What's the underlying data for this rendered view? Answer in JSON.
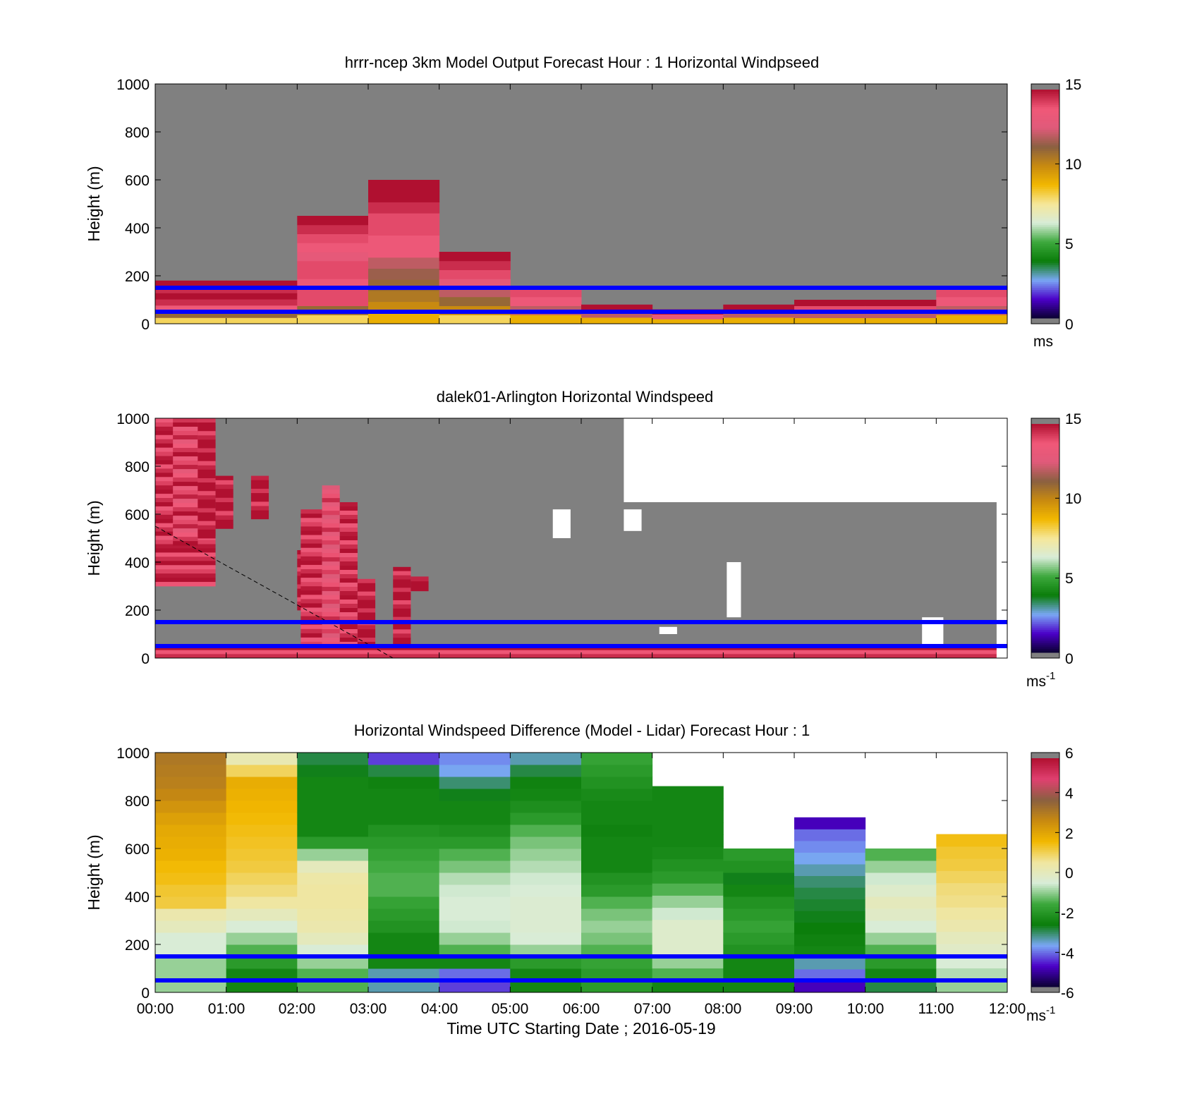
{
  "colors": {
    "missing": "#808080",
    "no_data": "#ffffff",
    "reference_line": "#0000ff",
    "speed_scale": [
      "#0a0030",
      "#4b00c8",
      "#7aa7f5",
      "#0a7d0a",
      "#3ca83c",
      "#d8ecd8",
      "#f5e79a",
      "#f2b800",
      "#c88a10",
      "#8a6040",
      "#e05a7a",
      "#f05878",
      "#b01030"
    ],
    "diff_scale": [
      "#0a0030",
      "#4b00c8",
      "#7aa7f5",
      "#0a7d0a",
      "#3ca83c",
      "#d8ecd8",
      "#f0e6a0",
      "#f2b800",
      "#c88a10",
      "#8a6040",
      "#e04070",
      "#b01030"
    ]
  },
  "xaxis": {
    "ticks": [
      "00:00",
      "01:00",
      "02:00",
      "03:00",
      "04:00",
      "05:00",
      "06:00",
      "07:00",
      "08:00",
      "09:00",
      "10:00",
      "11:00",
      "12:00"
    ],
    "label": "Time UTC  Starting Date ; 2016-05-19"
  },
  "chart_data": [
    {
      "type": "heatmap",
      "title": "hrrr-ncep 3km Model Output   Forecast Hour : 1 Horizontal Windpseed",
      "ylabel": "Height (m)",
      "ylim": [
        0,
        1000
      ],
      "yticks": [
        "0",
        "200",
        "400",
        "600",
        "800",
        "1000"
      ],
      "xlim_hours": [
        0,
        12
      ],
      "colorbar": {
        "ticks": [
          "0",
          "5",
          "10",
          "15"
        ],
        "range": [
          0,
          15
        ],
        "unit": "ms"
      },
      "reference_lines_m": [
        50,
        150
      ],
      "columns": [
        {
          "hour": 0,
          "top_m": 180,
          "speeds": [
            8,
            11,
            13.5,
            14.5,
            15,
            14.5,
            15
          ]
        },
        {
          "hour": 1,
          "top_m": 180,
          "speeds": [
            8,
            11,
            13.5,
            14.5,
            15,
            14.5,
            15
          ]
        },
        {
          "hour": 2,
          "top_m": 450,
          "speeds": [
            8,
            11,
            14,
            14,
            13.5,
            14,
            14,
            13,
            13.5,
            14,
            14.5,
            15
          ]
        },
        {
          "hour": 3,
          "top_m": 600,
          "speeds": [
            9,
            10,
            10.5,
            11,
            11.5,
            12,
            13.5,
            13.5,
            14,
            14,
            14.5,
            15,
            15
          ]
        },
        {
          "hour": 4,
          "top_m": 300,
          "speeds": [
            8,
            10,
            11,
            12,
            13,
            14,
            14.5,
            15
          ]
        },
        {
          "hour": 5,
          "top_m": 150,
          "speeds": [
            9,
            12,
            13.5,
            14
          ]
        },
        {
          "hour": 6,
          "top_m": 80,
          "speeds": [
            9,
            12,
            15
          ]
        },
        {
          "hour": 7,
          "top_m": 60,
          "speeds": [
            9,
            13,
            15
          ]
        },
        {
          "hour": 8,
          "top_m": 80,
          "speeds": [
            9,
            12,
            15
          ]
        },
        {
          "hour": 9,
          "top_m": 100,
          "speeds": [
            9,
            12,
            14,
            15
          ]
        },
        {
          "hour": 10,
          "top_m": 100,
          "speeds": [
            9,
            12,
            14,
            15
          ]
        },
        {
          "hour": 11,
          "top_m": 150,
          "speeds": [
            9,
            12,
            13.5,
            14
          ]
        }
      ]
    },
    {
      "type": "heatmap",
      "title": "dalek01-Arlington  Horizontal Windspeed",
      "ylabel": "Height (m)",
      "ylim": [
        0,
        1000
      ],
      "yticks": [
        "0",
        "200",
        "400",
        "600",
        "800",
        "1000"
      ],
      "xlim_hours": [
        0,
        12
      ],
      "colorbar": {
        "ticks": [
          "0",
          "5",
          "10",
          "15"
        ],
        "range": [
          0,
          15
        ],
        "unit": "ms",
        "unit_exponent": "-1"
      },
      "reference_lines_m": [
        50,
        150
      ],
      "dashed_line": {
        "from": [
          0,
          550
        ],
        "to": [
          3.35,
          0
        ]
      },
      "features": [
        {
          "x0": 0.0,
          "x1": 0.85,
          "y0": 300,
          "y1": 1000,
          "speed": 14.5
        },
        {
          "x0": 0.25,
          "x1": 0.6,
          "y0": 470,
          "y1": 1000,
          "speed": 14
        },
        {
          "x0": 0.6,
          "x1": 0.85,
          "y0": 500,
          "y1": 1000,
          "speed": 15
        },
        {
          "x0": 0.85,
          "x1": 1.1,
          "y0": 540,
          "y1": 760,
          "speed": 15
        },
        {
          "x0": 1.35,
          "x1": 1.6,
          "y0": 580,
          "y1": 760,
          "speed": 15
        },
        {
          "x0": 2.0,
          "x1": 2.25,
          "y0": 200,
          "y1": 450,
          "speed": 15
        },
        {
          "x0": 2.05,
          "x1": 2.35,
          "y0": 50,
          "y1": 620,
          "speed": 14.5
        },
        {
          "x0": 2.35,
          "x1": 2.6,
          "y0": 50,
          "y1": 720,
          "speed": 13.5
        },
        {
          "x0": 2.6,
          "x1": 2.85,
          "y0": 50,
          "y1": 650,
          "speed": 14.5
        },
        {
          "x0": 2.85,
          "x1": 3.1,
          "y0": 50,
          "y1": 330,
          "speed": 15
        },
        {
          "x0": 3.35,
          "x1": 3.6,
          "y0": 50,
          "y1": 380,
          "speed": 15
        },
        {
          "x0": 3.6,
          "x1": 3.85,
          "y0": 280,
          "y1": 340,
          "speed": 15
        },
        {
          "x0": 0.0,
          "x1": 12.0,
          "y0": 0,
          "y1": 50,
          "speed": 14.5
        }
      ],
      "no_data_regions": [
        {
          "x0": 6.6,
          "x1": 12.0,
          "y0": 650,
          "y1": 1000
        },
        {
          "x0": 11.85,
          "x1": 12.0,
          "y0": 0,
          "y1": 1000
        },
        {
          "x0": 10.8,
          "x1": 11.1,
          "y0": 50,
          "y1": 170
        },
        {
          "x0": 8.05,
          "x1": 8.25,
          "y0": 170,
          "y1": 400
        },
        {
          "x0": 7.1,
          "x1": 7.35,
          "y0": 100,
          "y1": 130
        },
        {
          "x0": 5.6,
          "x1": 5.85,
          "y0": 500,
          "y1": 620
        },
        {
          "x0": 6.6,
          "x1": 6.85,
          "y0": 530,
          "y1": 620
        }
      ]
    },
    {
      "type": "heatmap",
      "title": "Horizontal Windspeed Difference (Model - Lidar) Forecast Hour : 1",
      "xlabel": "Time UTC  Starting Date ; 2016-05-19",
      "ylabel": "Height (m)",
      "ylim": [
        0,
        1000
      ],
      "yticks": [
        "0",
        "200",
        "400",
        "600",
        "800",
        "1000"
      ],
      "xlim_hours": [
        0,
        12
      ],
      "colorbar": {
        "ticks": [
          "-6",
          "-4",
          "-2",
          "0",
          "2",
          "4",
          "6"
        ],
        "range": [
          -6,
          6
        ],
        "unit": "ms",
        "unit_exponent": "-1"
      },
      "reference_lines_m": [
        50,
        150
      ],
      "columns": [
        {
          "hour": 0,
          "top_m": 1000,
          "diffs": [
            -1,
            -1,
            -1,
            -0.5,
            -0.5,
            0,
            0.3,
            1.2,
            1.3,
            1.5,
            1.6,
            1.8,
            1.9,
            2.0,
            2.2,
            2.5,
            2.8,
            3.0,
            3.1,
            3.2
          ]
        },
        {
          "hour": 1,
          "top_m": 1000,
          "diffs": [
            -2.5,
            -2.5,
            -2,
            -1.5,
            -1,
            -0.5,
            0,
            0.5,
            0.8,
            1.0,
            1.2,
            1.3,
            1.4,
            1.5,
            1.6,
            1.7,
            1.8,
            1.9,
            1.0,
            0.2
          ]
        },
        {
          "hour": 2,
          "top_m": 1000,
          "diffs": [
            -1.5,
            -1.5,
            -1,
            -0.5,
            0,
            0.3,
            0.4,
            0.5,
            0.5,
            0.4,
            0,
            -1,
            -2,
            -2.5,
            -2.5,
            -2.5,
            -2.5,
            -2.5,
            -2.8,
            -3.0
          ]
        },
        {
          "hour": 3,
          "top_m": 1000,
          "diffs": [
            -3.5,
            -3.5,
            -2.5,
            -2.5,
            -2.5,
            -2.2,
            -2,
            -1.8,
            -1.5,
            -1.5,
            -1.6,
            -1.8,
            -2.0,
            -2.2,
            -2.5,
            -2.5,
            -2.5,
            -2.6,
            -3.0,
            -4.5
          ]
        },
        {
          "hour": 4,
          "top_m": 1000,
          "diffs": [
            -4.5,
            -4.2,
            -2.5,
            -1.5,
            -1,
            -0.6,
            -0.5,
            -0.5,
            -0.6,
            -0.8,
            -1.2,
            -1.5,
            -2.0,
            -2.3,
            -2.5,
            -2.5,
            -2.8,
            -3.2,
            -3.8,
            -4.0
          ]
        },
        {
          "hour": 5,
          "top_m": 1000,
          "diffs": [
            -2.5,
            -2.5,
            -2,
            -1,
            -0.5,
            -0.4,
            -0.4,
            -0.4,
            -0.5,
            -0.6,
            -0.8,
            -1.0,
            -1.2,
            -1.5,
            -2.0,
            -2.3,
            -2.5,
            -2.6,
            -3.0,
            -3.5
          ]
        },
        {
          "hour": 6,
          "top_m": 1000,
          "diffs": [
            -2,
            -2,
            -1.8,
            -1.5,
            -1.2,
            -1.0,
            -1.2,
            -1.5,
            -2,
            -2.2,
            -2.5,
            -2.5,
            -2.5,
            -2.6,
            -2.5,
            -2.5,
            -2.4,
            -2.2,
            -2.0,
            -1.8
          ]
        },
        {
          "hour": 7,
          "top_m": 860,
          "diffs": [
            -2.5,
            -1.5,
            -1,
            -0.3,
            -0.3,
            -0.3,
            -0.6,
            -1,
            -1.5,
            -2,
            -2.2,
            -2.4,
            -2.5,
            -2.5,
            -2.5,
            -2.5,
            -2.5
          ]
        },
        {
          "hour": 8,
          "top_m": 600,
          "diffs": [
            -2.5,
            -2.5,
            -2.5,
            -2.2,
            -2.0,
            -1.8,
            -2.0,
            -2.2,
            -2.5,
            -2.8,
            -2.2,
            -2.0
          ]
        },
        {
          "hour": 9,
          "top_m": 730,
          "diffs": [
            -5,
            -4.2,
            -3.5,
            -2.5,
            -2.6,
            -2.7,
            -2.8,
            -2.9,
            -3.0,
            -3.2,
            -3.5,
            -3.8,
            -4.0,
            -4.2,
            -5.0
          ]
        },
        {
          "hour": 10,
          "top_m": 600,
          "diffs": [
            -3,
            -2.5,
            -2,
            -1.5,
            -1,
            -0.5,
            -0.2,
            0,
            -0.3,
            -0.6,
            -1.0,
            -1.5
          ]
        },
        {
          "hour": 11,
          "top_m": 660,
          "diffs": [
            -1,
            -0.8,
            -0.5,
            -0.2,
            0,
            0.3,
            0.5,
            0.7,
            0.8,
            1.0,
            1.2,
            1.3,
            1.5
          ]
        }
      ]
    }
  ]
}
